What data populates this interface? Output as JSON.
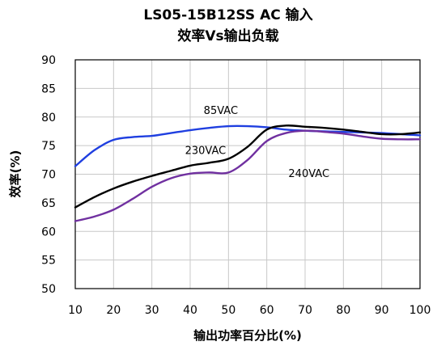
{
  "chart_data": {
    "type": "line",
    "title": "LS05-15B12SS AC 输入",
    "subtitle": "效率Vs输出负载",
    "xlabel": "输出功率百分比(%)",
    "ylabel": "效率(%)",
    "xlim": [
      10,
      100
    ],
    "ylim": [
      50,
      90
    ],
    "xticks": [
      10,
      20,
      30,
      40,
      50,
      60,
      70,
      80,
      90,
      100
    ],
    "yticks": [
      50,
      55,
      60,
      65,
      70,
      75,
      80,
      85,
      90
    ],
    "grid": "horizontal-vertical",
    "legend": "inline-labels",
    "series": [
      {
        "name": "85VAC",
        "color": "#1f3fe0",
        "x": [
          10,
          15,
          20,
          25,
          30,
          35,
          40,
          45,
          50,
          55,
          60,
          65,
          70,
          75,
          80,
          85,
          90,
          95,
          100
        ],
        "y": [
          71.4,
          74.2,
          76.0,
          76.5,
          76.7,
          77.2,
          77.7,
          78.1,
          78.4,
          78.4,
          78.2,
          77.8,
          77.6,
          77.5,
          77.4,
          77.3,
          77.2,
          77.0,
          76.8
        ]
      },
      {
        "name": "230VAC",
        "color": "#000000",
        "x": [
          10,
          15,
          20,
          25,
          30,
          35,
          40,
          45,
          50,
          55,
          60,
          65,
          70,
          75,
          80,
          85,
          90,
          95,
          100
        ],
        "y": [
          64.2,
          66.0,
          67.5,
          68.7,
          69.7,
          70.6,
          71.5,
          72.0,
          72.7,
          74.8,
          77.8,
          78.5,
          78.3,
          78.1,
          77.8,
          77.4,
          77.0,
          77.0,
          77.3
        ]
      },
      {
        "name": "240VAC",
        "color": "#7030a0",
        "x": [
          10,
          15,
          20,
          25,
          30,
          35,
          40,
          45,
          50,
          55,
          60,
          65,
          70,
          75,
          80,
          85,
          90,
          95,
          100
        ],
        "y": [
          61.8,
          62.6,
          63.8,
          65.7,
          67.8,
          69.3,
          70.1,
          70.3,
          70.3,
          72.5,
          75.8,
          77.2,
          77.6,
          77.4,
          77.1,
          76.6,
          76.2,
          76.1,
          76.1
        ]
      }
    ],
    "annotations": [
      {
        "text": "85VAC",
        "x": 48,
        "y": 80.5
      },
      {
        "text": "230VAC",
        "x": 44,
        "y": 73.5
      },
      {
        "text": "240VAC",
        "x": 71,
        "y": 69.5
      }
    ]
  }
}
